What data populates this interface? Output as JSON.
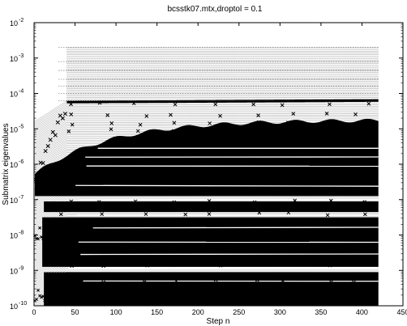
{
  "chart_data": {
    "type": "scatter",
    "title": "bcsstk07.mtx,droptol = 0.1",
    "xlabel": "Step n",
    "ylabel": "Submatrix eigenvalues",
    "xlim": [
      0,
      450
    ],
    "ylim": [
      1e-10,
      0.01
    ],
    "yscale": "log",
    "grid": false,
    "x_ticks": [
      0,
      50,
      100,
      150,
      200,
      250,
      300,
      350,
      400,
      450
    ],
    "x_tick_labels": [
      "0",
      "50",
      "100",
      "150",
      "200",
      "250",
      "300",
      "350",
      "400",
      "450"
    ],
    "y_ticks": [
      1e-10,
      1e-09,
      1e-08,
      1e-07,
      1e-06,
      1e-05,
      0.0001,
      0.001,
      0.01
    ],
    "y_tick_labels": [
      "10",
      "10",
      "10",
      "10",
      "10",
      "10",
      "10",
      "10",
      "10"
    ],
    "y_tick_exponents": [
      "-10",
      "-9",
      "-8",
      "-7",
      "-6",
      "-5",
      "-4",
      "-3",
      "-2"
    ],
    "n_steps": 420,
    "series": [
      {
        "marker": "x",
        "n_start": 2,
        "values_log10": [
          -4.7,
          -5.5,
          -6.5,
          -7.0,
          -5.2,
          -4.25
        ]
      },
      {
        "marker": "x",
        "n_start": 40,
        "values_log10": [
          -4.25,
          -4.2
        ]
      },
      {
        "marker": "x",
        "n_start": 5,
        "values_log10": [
          -8.7,
          -8.8,
          -8.9,
          -9.0,
          -8.9,
          -8.95
        ]
      },
      {
        "marker": "x",
        "n_start": 25,
        "values_log10": [
          -9.3,
          -9.35
        ]
      }
    ],
    "bands": [
      {
        "n_start": 0,
        "values_log10": [
          -6.5,
          -4.8
        ]
      },
      {
        "n_start": 3,
        "values_log10": [
          -9.7,
          -5.5
        ]
      },
      {
        "n_start": 2,
        "values_log10": [
          -10.0,
          -9.0
        ]
      }
    ],
    "levels_log10": [
      -2.7,
      -3.1,
      -3.35,
      -3.6,
      -3.8,
      -4.0,
      -4.2
    ]
  }
}
